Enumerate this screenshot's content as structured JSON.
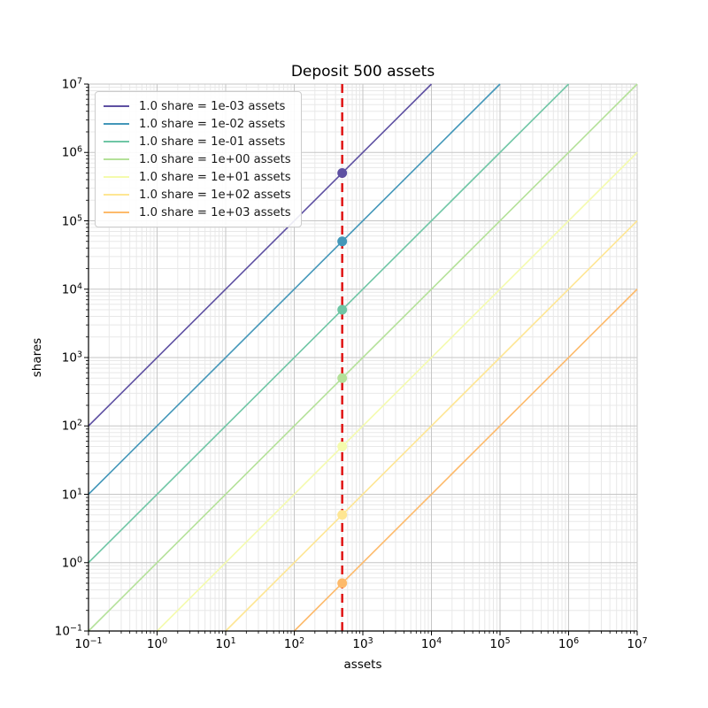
{
  "chart_data": {
    "type": "line",
    "title": "Deposit 500 assets",
    "xlabel": "assets",
    "ylabel": "shares",
    "xscale": "log",
    "yscale": "log",
    "xlim": [
      0.1,
      10000000
    ],
    "ylim": [
      0.1,
      10000000
    ],
    "x_tick_exponents": [
      -1,
      0,
      1,
      2,
      3,
      4,
      5,
      6,
      7
    ],
    "y_tick_exponents": [
      -1,
      0,
      1,
      2,
      3,
      4,
      5,
      6,
      7
    ],
    "grid": {
      "major": true,
      "minor": true
    },
    "legend_position": "upper left",
    "deposit": {
      "assets": 500
    },
    "vline": {
      "x": 500,
      "color": "#e01414",
      "style": "dashed"
    },
    "series": [
      {
        "name": "1.0 share = 1e-03 assets",
        "assets_per_share": 0.001,
        "color": "#5e50a2",
        "marker": {
          "x": 500,
          "y": 500000
        }
      },
      {
        "name": "1.0 share = 1e-02 assets",
        "assets_per_share": 0.01,
        "color": "#4397b9",
        "marker": {
          "x": 500,
          "y": 50000
        }
      },
      {
        "name": "1.0 share = 1e-01 assets",
        "assets_per_share": 0.1,
        "color": "#6fc6a5",
        "marker": {
          "x": 500,
          "y": 5000
        }
      },
      {
        "name": "1.0 share = 1e+00 assets",
        "assets_per_share": 1.0,
        "color": "#b4e199",
        "marker": {
          "x": 500,
          "y": 500
        }
      },
      {
        "name": "1.0 share = 1e+01 assets",
        "assets_per_share": 10.0,
        "color": "#f4fbad",
        "marker": {
          "x": 500,
          "y": 50
        }
      },
      {
        "name": "1.0 share = 1e+02 assets",
        "assets_per_share": 100.0,
        "color": "#fee693",
        "marker": {
          "x": 500,
          "y": 5
        }
      },
      {
        "name": "1.0 share = 1e+03 assets",
        "assets_per_share": 1000.0,
        "color": "#fdba6b",
        "marker": {
          "x": 500,
          "y": 0.5
        }
      }
    ]
  }
}
